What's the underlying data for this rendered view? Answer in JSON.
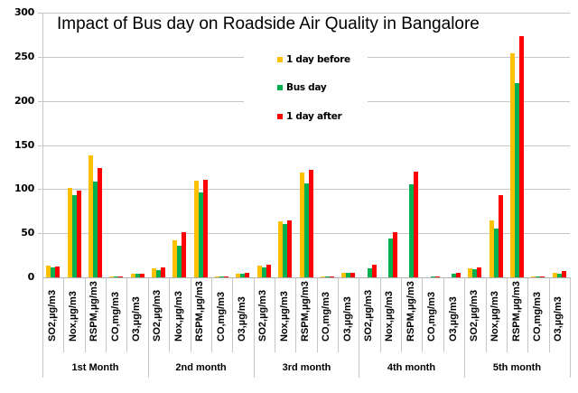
{
  "chart_data": {
    "type": "bar",
    "title": "Impact of Bus day on  Roadside Air Quality in Bangalore",
    "xlabel": "",
    "ylabel": "",
    "ylim": [
      0,
      300
    ],
    "yticks": [
      0,
      50,
      100,
      150,
      200,
      250,
      300
    ],
    "grid": true,
    "legend_position": "top-center (inside plot)",
    "groups": [
      "1st Month",
      "2nd month",
      "3rd month",
      "4th month",
      "5th month"
    ],
    "categories": [
      "SO2,µg/m3",
      "Nox,µg/m3",
      "RSPM,µg/m3",
      "CO,mg/m3",
      "O3,µg/m3"
    ],
    "series": [
      {
        "name": "1 day before",
        "color": "#FFC000",
        "values": [
          [
            13,
            101,
            138,
            1,
            4.5
          ],
          [
            10,
            42,
            110,
            1,
            4.5
          ],
          [
            13.5,
            63,
            119,
            1,
            5
          ],
          [
            null,
            null,
            null,
            null,
            null
          ],
          [
            10,
            64,
            254,
            1,
            5.5
          ]
        ]
      },
      {
        "name": "Bus day",
        "color": "#00B050",
        "values": [
          [
            11,
            93,
            109,
            1,
            4.5
          ],
          [
            8,
            36,
            96,
            1,
            4
          ],
          [
            11,
            60,
            106,
            1,
            5
          ],
          [
            10,
            44,
            105,
            0.5,
            4
          ],
          [
            9,
            55,
            220,
            1,
            4
          ]
        ]
      },
      {
        "name": "1 day after",
        "color": "#FF0000",
        "values": [
          [
            12,
            98,
            124,
            1,
            4.5
          ],
          [
            11,
            51,
            111,
            1,
            5
          ],
          [
            14,
            64,
            122,
            1,
            5
          ],
          [
            14,
            51,
            120,
            1,
            5
          ],
          [
            11,
            93,
            273,
            1,
            7.5
          ]
        ]
      }
    ]
  },
  "legend": {
    "items": [
      {
        "label": "1 day before",
        "color": "#FFC000"
      },
      {
        "label": "Bus day",
        "color": "#00B050"
      },
      {
        "label": "1 day after",
        "color": "#FF0000"
      }
    ]
  }
}
